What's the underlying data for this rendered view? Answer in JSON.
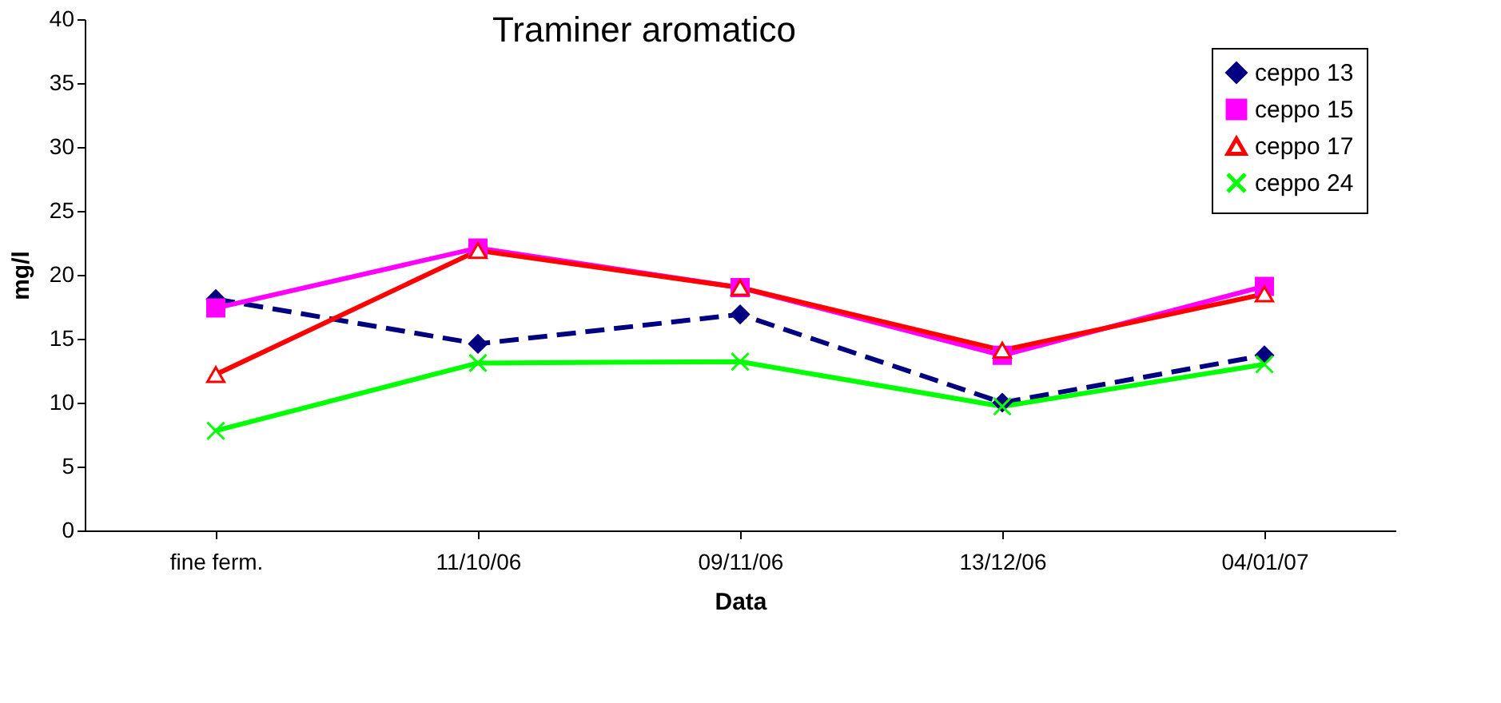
{
  "chart_data": {
    "type": "line",
    "title": "Traminer aromatico",
    "xlabel": "Data",
    "ylabel": "mg/l",
    "categories": [
      "fine ferm.",
      "11/10/06",
      "09/11/06",
      "13/12/06",
      "04/01/07"
    ],
    "series": [
      {
        "name": "ceppo 13",
        "color": "#000080",
        "marker": "diamond",
        "line_style": "dashed",
        "values": [
          18.1,
          14.6,
          16.9,
          10.0,
          13.7
        ]
      },
      {
        "name": "ceppo 15",
        "color": "#ff00ff",
        "marker": "square",
        "values": [
          17.4,
          22.1,
          19.0,
          13.7,
          19.1
        ]
      },
      {
        "name": "ceppo 17",
        "color": "#ff0000",
        "marker": "triangle",
        "values": [
          12.2,
          21.9,
          19.0,
          14.1,
          18.5
        ]
      },
      {
        "name": "ceppo 24",
        "color": "#00ff00",
        "marker": "cross",
        "values": [
          7.8,
          13.1,
          13.2,
          9.7,
          13.0
        ]
      }
    ],
    "ylim": [
      0,
      40
    ],
    "yticks": [
      0,
      5,
      10,
      15,
      20,
      25,
      30,
      35,
      40
    ],
    "grid": false,
    "legend": "top right"
  }
}
